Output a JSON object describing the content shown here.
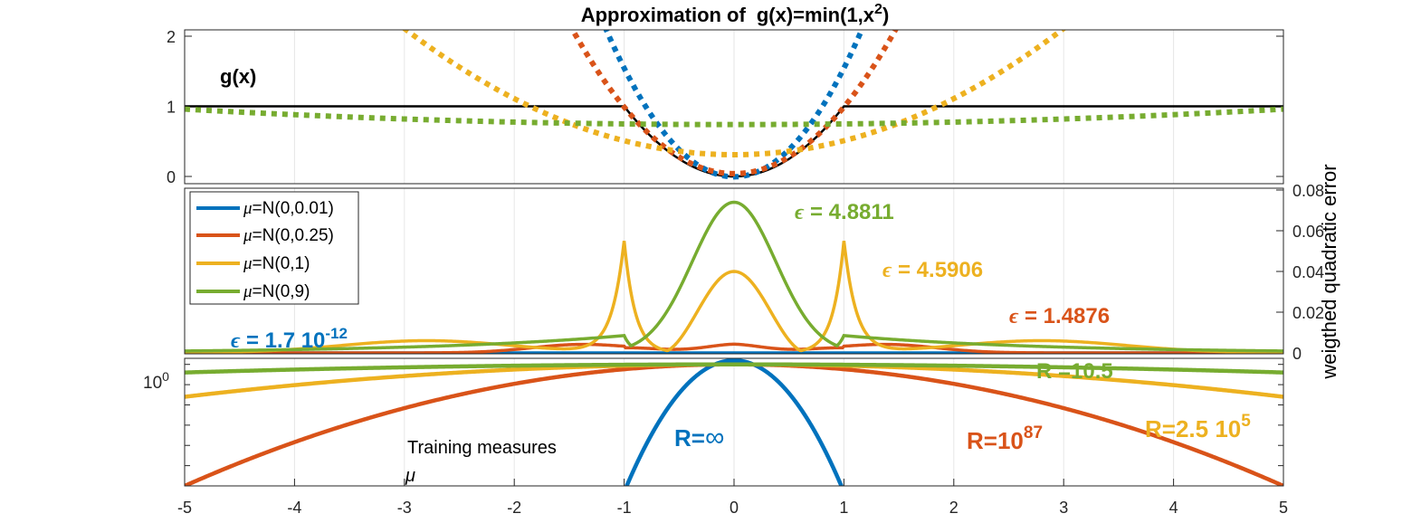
{
  "colors": {
    "blue": "#0072BD",
    "orange": "#D95319",
    "yellow": "#EDB120",
    "green": "#77AC30",
    "black": "#000000",
    "axis": "#262626",
    "grid": "#e6e6e6"
  },
  "chart_data": [
    {
      "id": "top",
      "type": "line",
      "title": "Approximation of",
      "title_fx": "g(x)=min(1,x",
      "title_sup": "2",
      "title_close": ")",
      "xlim": [
        -5,
        5
      ],
      "ylim": [
        0,
        2
      ],
      "yticks": [
        0,
        1,
        2
      ],
      "ytick_labels": [
        "0",
        "1",
        "2"
      ],
      "grid_x": [
        -5,
        -4,
        -3,
        -2,
        -1,
        0,
        1,
        2,
        3,
        4,
        5
      ],
      "annotations": [
        {
          "text": "g(x)",
          "x": -4.6,
          "y": 1.35,
          "color": "black"
        }
      ],
      "series": [
        {
          "name": "g(x)",
          "style": "solid",
          "color": "black",
          "kind": "gmin"
        },
        {
          "name": "approx N(0,0.01)",
          "style": "dotted",
          "color": "blue",
          "kind": "parab",
          "a": 0.0,
          "b": 1.55,
          "dip": 0.005
        },
        {
          "name": "approx N(0,0.25)",
          "style": "dotted",
          "color": "orange",
          "kind": "parab",
          "a": 0.04,
          "b": 0.95,
          "dip": 0.0
        },
        {
          "name": "approx N(0,1)",
          "style": "dotted",
          "color": "yellow",
          "kind": "parab",
          "a": 0.31,
          "b": 0.2,
          "dip": 0.0
        },
        {
          "name": "approx N(0,9)",
          "style": "dotted",
          "color": "green",
          "kind": "parab",
          "a": 0.74,
          "b": 0.0088,
          "dip": 0.0
        }
      ]
    },
    {
      "id": "middle",
      "type": "line",
      "xlim": [
        -5,
        5
      ],
      "ylim": [
        0,
        0.08
      ],
      "y_axis_side": "right",
      "ylabel": "weigthed quadratic error",
      "yticks": [
        0,
        0.02,
        0.04,
        0.06,
        0.08
      ],
      "ytick_labels": [
        "0",
        "0.02",
        "0.04",
        "0.06",
        "0.08"
      ],
      "legend": {
        "placement": "top-left",
        "entries": [
          {
            "mu": "μ",
            "text": "=N(0,0.01)",
            "color": "blue"
          },
          {
            "mu": "μ",
            "text": "=N(0,0.25)",
            "color": "orange"
          },
          {
            "mu": "μ",
            "text": "=N(0,1)",
            "color": "yellow"
          },
          {
            "mu": "μ",
            "text": "=N(0,9)",
            "color": "green"
          }
        ]
      },
      "annotations": [
        {
          "eps": "ϵ",
          "text": " = 1.7 10",
          "sup": "-12",
          "x": -4.55,
          "y": 0.0055,
          "color": "blue"
        },
        {
          "eps": "ϵ",
          "text": " = 4.8811",
          "x": 0.58,
          "y": 0.066,
          "color": "green"
        },
        {
          "eps": "ϵ",
          "text": " = 4.5906",
          "x": 1.35,
          "y": 0.039,
          "color": "yellow"
        },
        {
          "eps": "ϵ",
          "text": " = 1.4876",
          "x": 2.5,
          "y": 0.017,
          "color": "orange"
        }
      ],
      "series": [
        {
          "name": "N(0,0.01)",
          "color": "blue",
          "values_note": "≈0 everywhere",
          "peak": 0.0
        },
        {
          "name": "N(0,0.25)",
          "color": "orange",
          "peak": 0.004
        },
        {
          "name": "N(0,1)",
          "color": "yellow",
          "peak_center": 0.04,
          "peak_at_pm1": 0.055
        },
        {
          "name": "N(0,9)",
          "color": "green",
          "peak_center": 0.074,
          "value_at_pm1": 0.0085
        }
      ]
    },
    {
      "id": "bottom",
      "type": "line",
      "xlim": [
        -5,
        5
      ],
      "ylim_log": [
        -6,
        0.3
      ],
      "yscale": "log",
      "ytick_label_base": "10",
      "ytick_label_exp": "0",
      "xticks": [
        -5,
        -4,
        -3,
        -2,
        -1,
        0,
        1,
        2,
        3,
        4,
        5
      ],
      "xtick_labels": [
        "-5",
        "-4",
        "-3",
        "-2",
        "-1",
        "0",
        "1",
        "2",
        "3",
        "4",
        "5"
      ],
      "ylabel_text": "Training measures",
      "ylabel_mu": "μ",
      "annotations": [
        {
          "text": "R=",
          "sym": "∞",
          "x": -0.55,
          "y_log": -3.5,
          "color": "blue"
        },
        {
          "text": "R=10",
          "sup": "87",
          "x": 2.1,
          "y_log": -3.6,
          "color": "orange"
        },
        {
          "text": "R=2.5 10",
          "sup": "5",
          "x": 3.75,
          "y_log": -3.3,
          "color": "yellow"
        },
        {
          "text": "R =10.5",
          "x": 2.75,
          "y_log": 0.1,
          "color": "green"
        }
      ],
      "series": [
        {
          "name": "N(0,0.01) density",
          "color": "blue",
          "peak_log": 0.2,
          "support": [
            -1,
            1
          ]
        },
        {
          "name": "N(0,0.25) density",
          "color": "orange",
          "peak_log": 0.0,
          "at_pm5_log": -6.0
        },
        {
          "name": "N(0,1) density",
          "color": "yellow",
          "peak_log": 0.0,
          "at_pm5_log": -1.6
        },
        {
          "name": "N(0,9) density",
          "color": "green",
          "peak_log": 0.0,
          "at_pm5_log": -0.4
        }
      ]
    }
  ]
}
